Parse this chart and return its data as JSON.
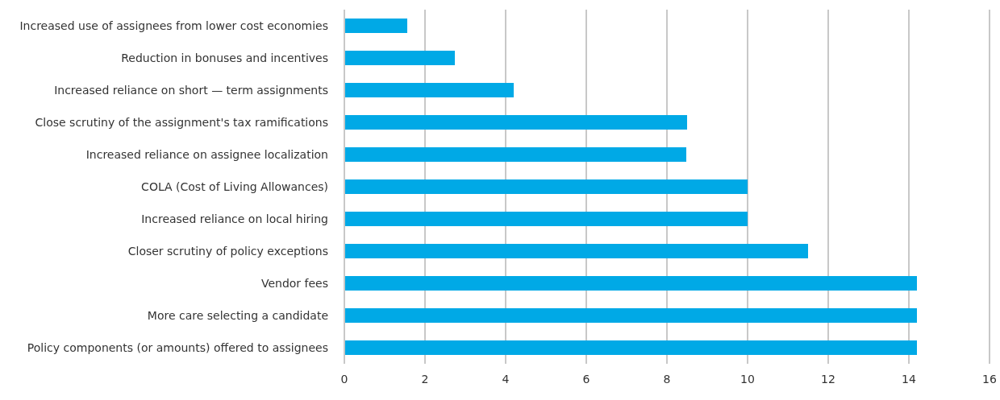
{
  "chart_data": {
    "type": "bar",
    "orientation": "horizontal",
    "categories": [
      "Increased use of assignees from lower cost economies",
      "Reduction in bonuses and incentives",
      "Increased reliance on short — term assignments",
      "Close scrutiny of the assignment's tax ramifications",
      "Increased reliance on assignee localization",
      "COLA (Cost of Living Allowances)",
      "Increased reliance on local hiring",
      "Closer scrutiny of policy exceptions",
      "Vendor fees",
      "More care selecting a candidate",
      "Policy components (or amounts) offered to assignees"
    ],
    "values": [
      1.56,
      2.74,
      4.2,
      8.5,
      8.48,
      10,
      10,
      11.5,
      14.2,
      14.2,
      14.2
    ],
    "color": "#00a9e6",
    "xlim": [
      0,
      16
    ],
    "xticks": [
      0,
      2,
      4,
      6,
      8,
      10,
      12,
      14,
      16
    ],
    "grid": "x"
  }
}
